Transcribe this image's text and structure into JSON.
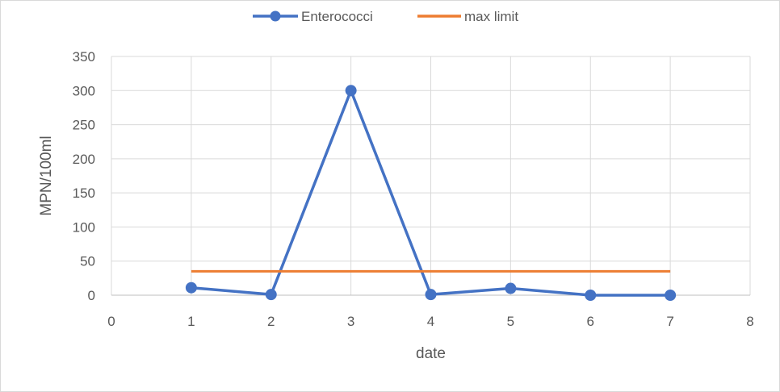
{
  "chart_data": {
    "type": "scatter",
    "title": "",
    "xlabel": "date",
    "ylabel": "MPN/100ml",
    "xlim": [
      0,
      8
    ],
    "ylim": [
      0,
      350
    ],
    "x_ticks": [
      0,
      1,
      2,
      3,
      4,
      5,
      6,
      7,
      8
    ],
    "y_ticks": [
      0,
      50,
      100,
      150,
      200,
      250,
      300,
      350
    ],
    "grid": true,
    "legend_position": "top",
    "series": [
      {
        "name": "Enterococci",
        "color": "#4472c4",
        "marker": "circle",
        "x": [
          1,
          2,
          3,
          4,
          5,
          6,
          7
        ],
        "y": [
          11,
          1,
          300,
          1,
          10,
          0,
          0
        ]
      },
      {
        "name": "max limit",
        "color": "#ed7d31",
        "marker": "none",
        "x": [
          1,
          7
        ],
        "y": [
          35,
          35
        ]
      }
    ]
  }
}
